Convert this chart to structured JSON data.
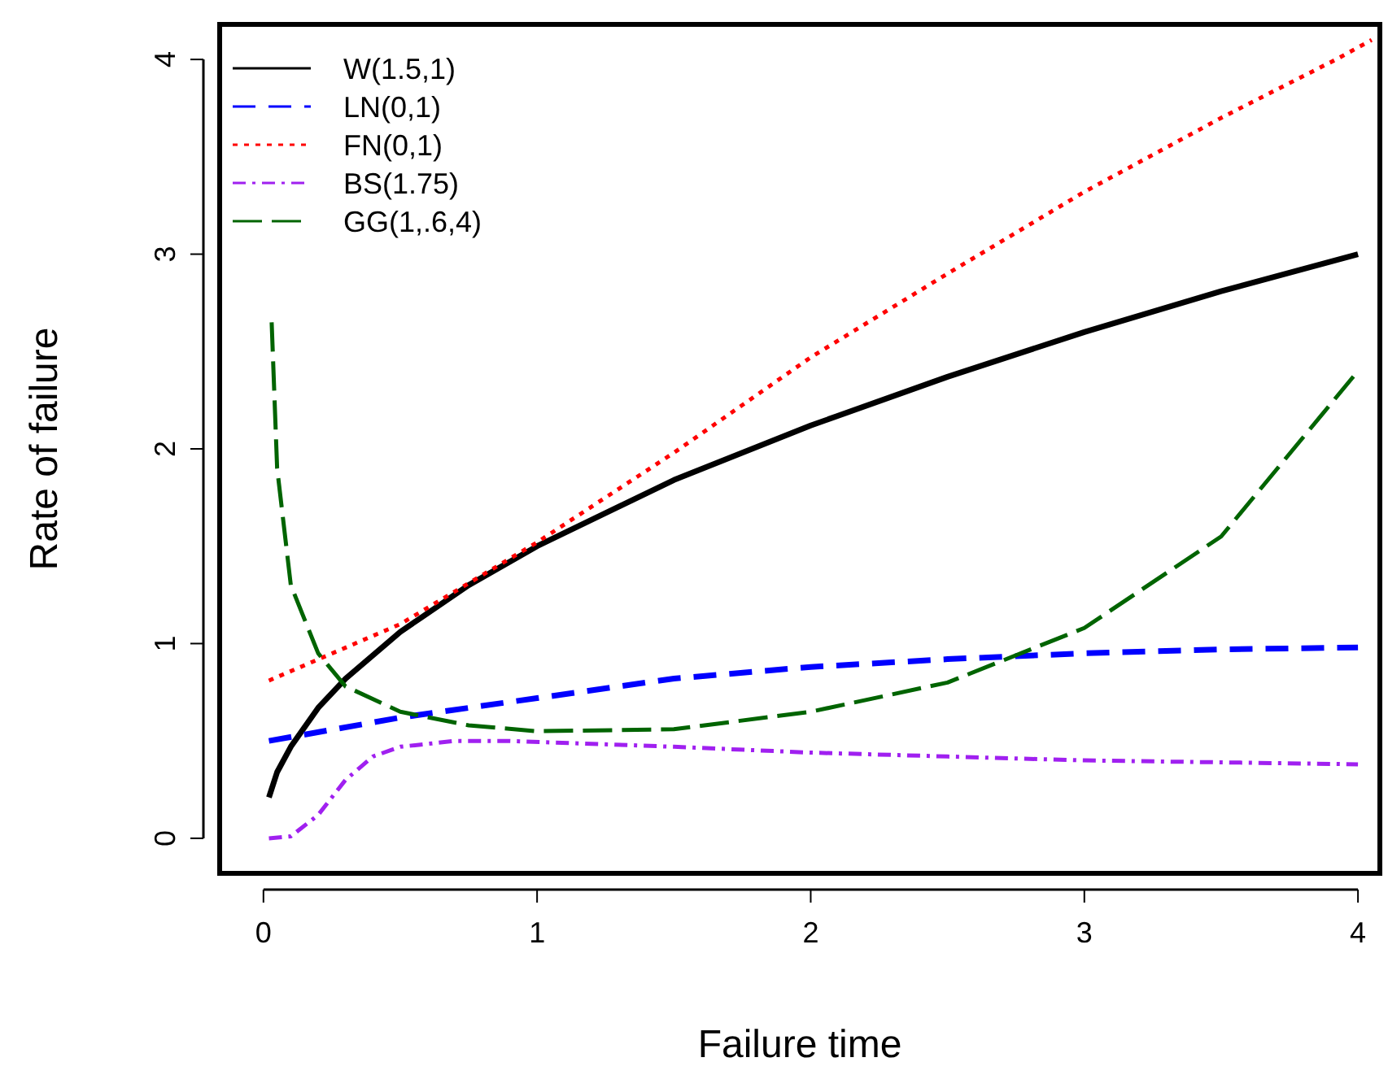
{
  "chart_data": {
    "type": "line",
    "xlabel": "Failure time",
    "ylabel": "Rate of failure",
    "xlim": [
      -0.16,
      4.08
    ],
    "ylim": [
      -0.18,
      4.18
    ],
    "xticks": [
      0,
      1,
      2,
      3,
      4
    ],
    "yticks": [
      0,
      1,
      2,
      3,
      4
    ],
    "grid": false,
    "legend": "top left",
    "marker": "none",
    "series": [
      {
        "name": "W(1.5,1)",
        "color": "#000000",
        "line_style": "solid",
        "x": [
          0.02,
          0.05,
          0.1,
          0.2,
          0.3,
          0.5,
          0.75,
          1,
          1.5,
          2,
          2.5,
          3,
          3.5,
          4
        ],
        "values": [
          0.21,
          0.34,
          0.47,
          0.67,
          0.82,
          1.06,
          1.3,
          1.5,
          1.84,
          2.12,
          2.37,
          2.6,
          2.81,
          3.0
        ]
      },
      {
        "name": "LN(0,1)",
        "color": "#0000ff",
        "line_style": "dashed",
        "x": [
          0.02,
          0.5,
          1,
          1.5,
          2,
          2.5,
          3,
          3.5,
          4
        ],
        "values": [
          0.5,
          0.62,
          0.72,
          0.82,
          0.88,
          0.92,
          0.95,
          0.97,
          0.98
        ]
      },
      {
        "name": "FN(0,1)",
        "color": "#ff0000",
        "line_style": "dotted",
        "x": [
          0.02,
          0.5,
          1,
          1.5,
          2,
          2.5,
          3,
          3.5,
          3.92,
          4.05
        ],
        "values": [
          0.81,
          1.1,
          1.52,
          1.98,
          2.47,
          2.9,
          3.32,
          3.7,
          4.0,
          4.1
        ]
      },
      {
        "name": "BS(1.75)",
        "color": "#a020f0",
        "line_style": "dashdot",
        "x": [
          0.02,
          0.1,
          0.2,
          0.3,
          0.4,
          0.5,
          0.7,
          0.9,
          1.5,
          2,
          2.5,
          3,
          3.5,
          4
        ],
        "values": [
          0,
          0.01,
          0.12,
          0.3,
          0.42,
          0.47,
          0.5,
          0.5,
          0.47,
          0.44,
          0.42,
          0.4,
          0.39,
          0.38
        ]
      },
      {
        "name": "GG(1,.6,4)",
        "color": "#006400",
        "line_style": "longdash",
        "x": [
          0.03,
          0.05,
          0.1,
          0.2,
          0.3,
          0.5,
          0.75,
          1,
          1.5,
          2,
          2.5,
          3,
          3.5,
          4
        ],
        "values": [
          2.65,
          1.9,
          1.3,
          0.95,
          0.78,
          0.65,
          0.58,
          0.55,
          0.56,
          0.65,
          0.8,
          1.08,
          1.55,
          2.4
        ]
      }
    ]
  }
}
